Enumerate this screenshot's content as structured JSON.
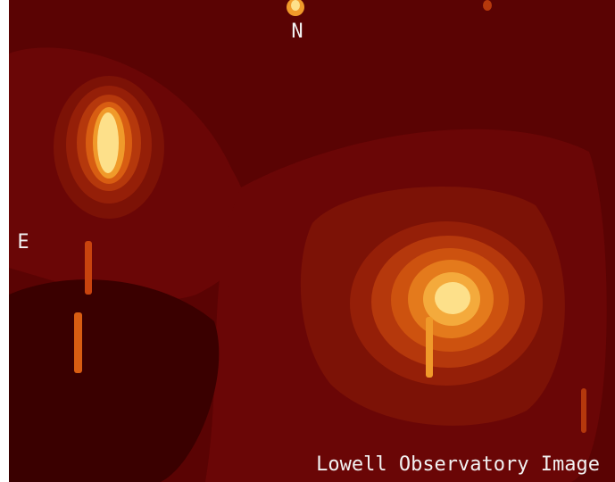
{
  "labels": {
    "north": "N",
    "east": "E",
    "credit": "Lowell Observatory Image"
  }
}
